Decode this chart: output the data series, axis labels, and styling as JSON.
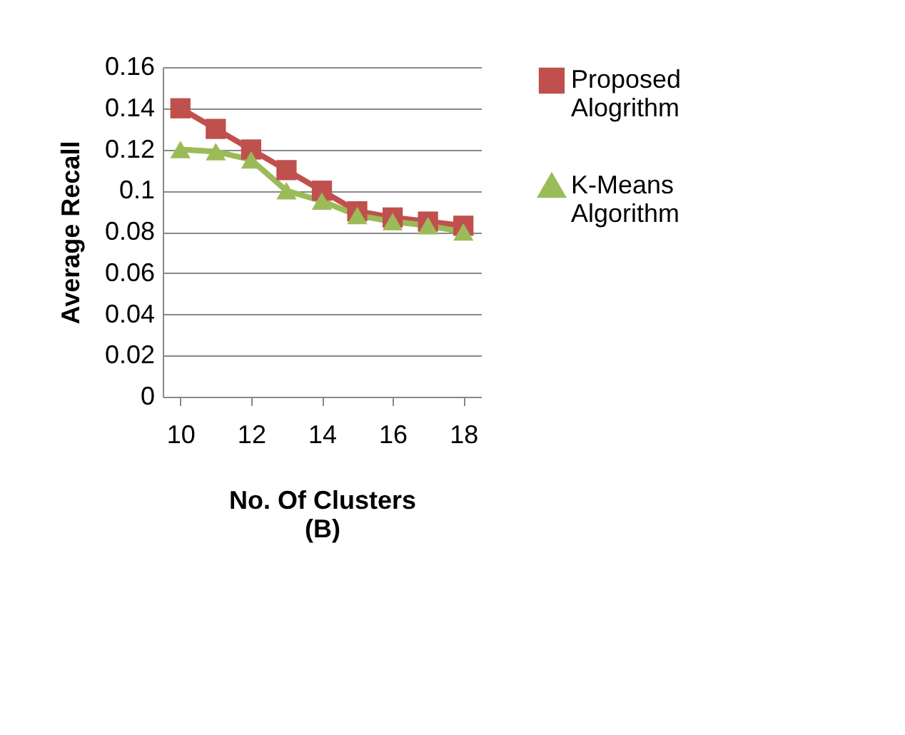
{
  "chart_data": {
    "type": "line",
    "xlabel": "No. Of Clusters",
    "ylabel": "Average Recall",
    "annotations": [
      "(B)"
    ],
    "x": [
      10,
      11,
      12,
      13,
      14,
      15,
      16,
      17,
      18
    ],
    "xlim": [
      9.5,
      18.5
    ],
    "xticks": [
      10,
      12,
      14,
      16,
      18
    ],
    "ylim": [
      0,
      0.16
    ],
    "yticks": [
      0,
      0.02,
      0.04,
      0.06,
      0.08,
      0.1,
      0.12,
      0.14,
      0.16
    ],
    "grid": "y",
    "legend": "right",
    "series": [
      {
        "name": "Proposed Alogrithm",
        "color": "#c0504d",
        "marker": "square",
        "values": [
          0.14,
          0.13,
          0.12,
          0.11,
          0.1,
          0.09,
          0.087,
          0.085,
          0.083
        ]
      },
      {
        "name": "K-Means Algorithm",
        "color": "#9bbb59",
        "marker": "triangle",
        "values": [
          0.12,
          0.119,
          0.115,
          0.1,
          0.095,
          0.088,
          0.085,
          0.083,
          0.08
        ]
      }
    ]
  }
}
